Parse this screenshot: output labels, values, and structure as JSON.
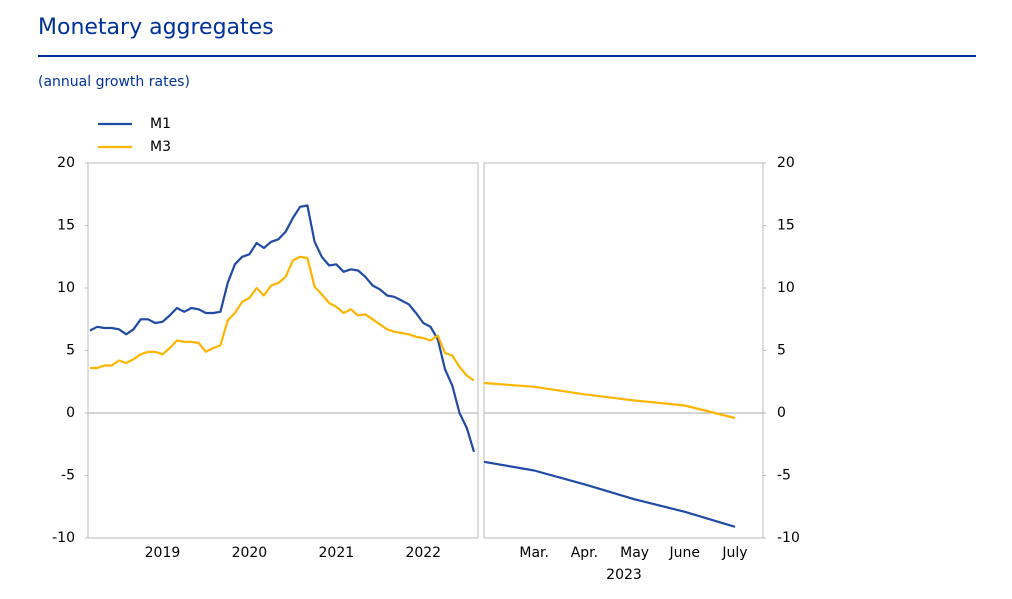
{
  "header": {
    "title": "Monetary aggregates",
    "subtitle": "(annual growth rates)"
  },
  "chart_data": [
    {
      "type": "line",
      "categories": [
        null,
        null,
        null,
        null,
        null,
        null,
        null,
        null,
        null,
        null,
        "2019",
        null,
        null,
        null,
        null,
        null,
        null,
        null,
        null,
        null,
        null,
        null,
        "2020",
        null,
        null,
        null,
        null,
        null,
        null,
        null,
        null,
        null,
        null,
        null,
        "2021",
        null,
        null,
        null,
        null,
        null,
        null,
        null,
        null,
        null,
        null,
        null,
        "2022",
        null,
        null,
        null,
        null,
        null,
        null,
        null
      ],
      "series": [
        {
          "name": "M1",
          "color": "#1f4ba5",
          "values": [
            6.6,
            6.9,
            6.8,
            6.8,
            6.7,
            6.3,
            6.7,
            7.5,
            7.5,
            7.2,
            7.3,
            7.8,
            8.4,
            8.1,
            8.4,
            8.3,
            8.0,
            8.0,
            8.1,
            10.4,
            11.9,
            12.5,
            12.7,
            13.6,
            13.2,
            13.7,
            13.9,
            14.5,
            15.6,
            16.5,
            16.6,
            13.7,
            12.5,
            11.8,
            11.9,
            11.3,
            11.5,
            11.4,
            10.9,
            10.2,
            9.9,
            9.4,
            9.3,
            9.0,
            8.7,
            8.0,
            7.2,
            6.9,
            5.9,
            3.5,
            2.2,
            0.0,
            -1.2,
            -3.1
          ]
        },
        {
          "name": "M3",
          "color": "#ffb400",
          "values": [
            3.6,
            3.6,
            3.8,
            3.8,
            4.2,
            4.0,
            4.3,
            4.7,
            4.9,
            4.9,
            4.7,
            5.2,
            5.8,
            5.7,
            5.7,
            5.6,
            4.9,
            5.2,
            5.4,
            7.4,
            8.0,
            8.9,
            9.2,
            10.0,
            9.4,
            10.2,
            10.4,
            10.9,
            12.2,
            12.5,
            12.4,
            10.1,
            9.5,
            8.8,
            8.5,
            8.0,
            8.3,
            7.8,
            7.9,
            7.5,
            7.1,
            6.7,
            6.5,
            6.4,
            6.3,
            6.1,
            6.0,
            5.8,
            6.2,
            4.8,
            4.6,
            3.7,
            3.0,
            2.6
          ]
        }
      ],
      "ylim": [
        -10,
        20
      ],
      "yticks": [
        -10,
        -5,
        0,
        5,
        10,
        15,
        20
      ]
    },
    {
      "type": "line",
      "categories": [
        null,
        "Mar.",
        "Apr.",
        "May",
        "June",
        "July"
      ],
      "x_label": "2023",
      "series": [
        {
          "color": "#1f4ba5",
          "values": [
            -3.9,
            -4.6,
            -5.7,
            -6.9,
            -7.9,
            -9.1
          ]
        },
        {
          "color": "#ffb400",
          "values": [
            2.4,
            2.1,
            1.5,
            1.0,
            0.6,
            -0.4
          ]
        }
      ],
      "ylim": [
        -10,
        20
      ],
      "yticks": [
        -10,
        -5,
        0,
        5,
        10,
        15,
        20
      ]
    }
  ]
}
